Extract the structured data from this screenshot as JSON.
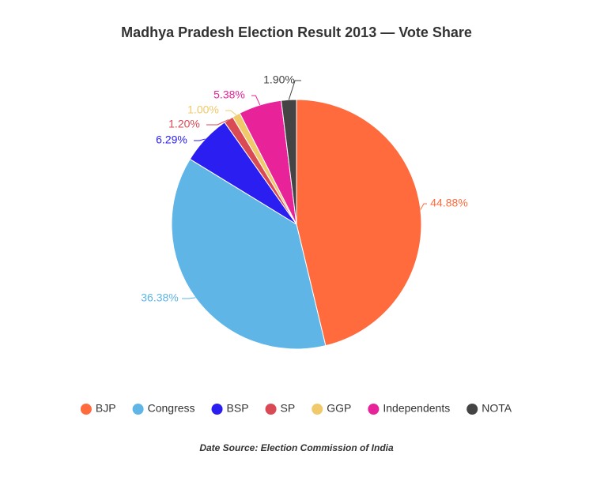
{
  "chart_data": {
    "type": "pie",
    "title": "Madhya Pradesh Election Result 2013 — Vote Share",
    "categories": [
      "BJP",
      "Congress",
      "BSP",
      "SP",
      "GGP",
      "Independents",
      "NOTA"
    ],
    "values": [
      44.88,
      36.38,
      6.29,
      1.2,
      1.0,
      5.38,
      1.9
    ],
    "value_labels": [
      "44.88%",
      "36.38%",
      "6.29%",
      "1.20%",
      "1.00%",
      "5.38%",
      "1.90%"
    ],
    "colors": [
      "#ff6b3d",
      "#5eb5e6",
      "#2a1ef0",
      "#d94a55",
      "#f0c96a",
      "#e8239a",
      "#444444"
    ],
    "note": "Date Source: Election Commission of India"
  }
}
